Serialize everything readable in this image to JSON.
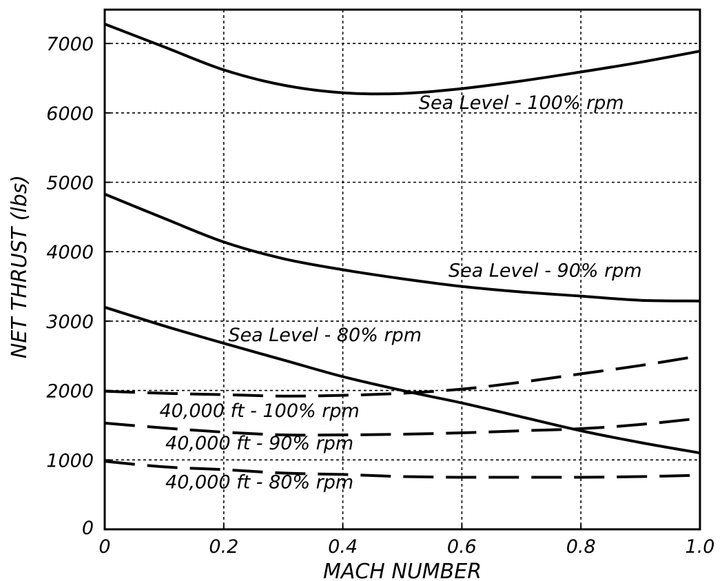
{
  "chart_data": {
    "type": "line",
    "title": "",
    "xlabel": "MACH NUMBER",
    "ylabel": "NET THRUST (lbs)",
    "xlim": [
      0,
      1.0
    ],
    "ylim": [
      0,
      7000
    ],
    "grid": true,
    "x_ticks": [
      "0",
      "0.2",
      "0.4",
      "0.6",
      "0.8",
      "1.0"
    ],
    "y_ticks": [
      "0",
      "1000",
      "2000",
      "3000",
      "4000",
      "5000",
      "6000",
      "7000"
    ],
    "x": [
      0,
      0.1,
      0.2,
      0.3,
      0.4,
      0.5,
      0.6,
      0.7,
      0.8,
      0.9,
      1.0
    ],
    "series": [
      {
        "name": "Sea Level - 100% rpm",
        "style": "solid",
        "values": [
          7280,
          6950,
          6620,
          6400,
          6290,
          6280,
          6350,
          6460,
          6590,
          6730,
          6890
        ]
      },
      {
        "name": "Sea Level - 90% rpm",
        "style": "solid",
        "values": [
          4830,
          4480,
          4140,
          3900,
          3740,
          3610,
          3500,
          3420,
          3360,
          3300,
          3290
        ]
      },
      {
        "name": "Sea Level - 80% rpm",
        "style": "solid",
        "values": [
          3200,
          2930,
          2680,
          2440,
          2200,
          2000,
          1820,
          1620,
          1420,
          1250,
          1100
        ]
      },
      {
        "name": "40,000 ft - 100% rpm",
        "style": "dashed",
        "values": [
          1990,
          1960,
          1940,
          1920,
          1930,
          1960,
          2020,
          2120,
          2240,
          2360,
          2500
        ]
      },
      {
        "name": "40,000 ft - 90% rpm",
        "style": "dashed",
        "values": [
          1530,
          1460,
          1400,
          1360,
          1360,
          1370,
          1390,
          1420,
          1450,
          1510,
          1600
        ]
      },
      {
        "name": "40,000 ft - 80% rpm",
        "style": "dashed",
        "values": [
          980,
          900,
          860,
          810,
          790,
          760,
          750,
          750,
          750,
          760,
          780
        ]
      }
    ],
    "annotations": [
      {
        "text": "Sea Level - 100% rpm",
        "x": 0.7,
        "y": 6060
      },
      {
        "text": "Sea Level - 90% rpm",
        "x": 0.74,
        "y": 3640
      },
      {
        "text": "Sea Level - 80% rpm",
        "x": 0.37,
        "y": 2710
      },
      {
        "text": "40,000 ft - 100% rpm",
        "x": 0.26,
        "y": 1620
      },
      {
        "text": "40,000 ft - 90% rpm",
        "x": 0.26,
        "y": 1150
      },
      {
        "text": "40,000 ft - 80% rpm",
        "x": 0.26,
        "y": 590
      }
    ]
  }
}
